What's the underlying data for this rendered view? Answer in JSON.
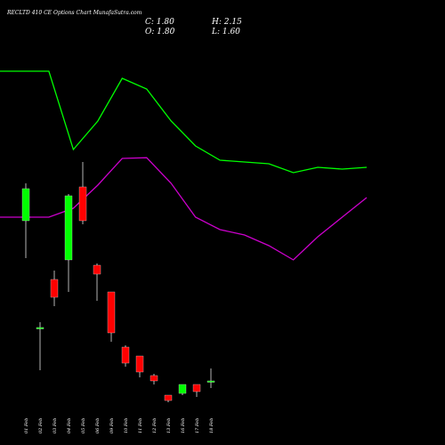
{
  "header": {
    "title": "RECLTD 410  CE Options  Chart MunafaSutra.com",
    "close": "C: 1.80",
    "high": "H: 2.15",
    "open": "O: 1.80",
    "low": "L: 1.60"
  },
  "colors": {
    "background": "#000000",
    "up": "#00ff00",
    "down": "#ff0000",
    "upper_band": "#00ff00",
    "lower_band": "#cc00cc",
    "wick": "#ffffff"
  },
  "chart_data": {
    "type": "candlestick",
    "categories": [
      "01 Feb",
      "02 Feb",
      "03 Feb",
      "04 Feb",
      "05 Feb",
      "06 Feb",
      "09 Feb",
      "10 Feb",
      "11 Feb",
      "12 Feb",
      "13 Feb",
      "16 Feb",
      "17 Feb",
      "18 Feb"
    ],
    "ohlc": [
      {
        "open": 6.3,
        "high": 7.35,
        "low": 5.25,
        "close": 7.2
      },
      {
        "open": 3.3,
        "high": 3.45,
        "low": 2.1,
        "close": 3.3
      },
      {
        "open": 4.65,
        "high": 4.9,
        "low": 3.9,
        "close": 4.15
      },
      {
        "open": 5.2,
        "high": 7.05,
        "low": 4.3,
        "close": 7.0
      },
      {
        "open": 7.25,
        "high": 7.95,
        "low": 6.2,
        "close": 6.3
      },
      {
        "open": 5.05,
        "high": 5.1,
        "low": 4.05,
        "close": 4.8
      },
      {
        "open": 4.3,
        "high": 4.3,
        "low": 2.9,
        "close": 3.15
      },
      {
        "open": 2.75,
        "high": 2.8,
        "low": 2.2,
        "close": 2.3
      },
      {
        "open": 2.5,
        "high": 2.5,
        "low": 1.9,
        "close": 2.05
      },
      {
        "open": 1.95,
        "high": 2.0,
        "low": 1.7,
        "close": 1.8
      },
      {
        "open": 1.4,
        "high": 1.4,
        "low": 1.2,
        "close": 1.25
      },
      {
        "open": 1.45,
        "high": 1.7,
        "low": 1.4,
        "close": 1.7
      },
      {
        "open": 1.7,
        "high": 1.7,
        "low": 1.35,
        "close": 1.5
      },
      {
        "open": 1.8,
        "high": 2.15,
        "low": 1.6,
        "close": 1.8
      }
    ],
    "upper_band": [
      {
        "x": "31 Jan",
        "y": 10.5
      },
      {
        "x": "01 Feb",
        "y": 10.5
      },
      {
        "x": "02 Feb",
        "y": 10.5
      },
      {
        "x": "03 Feb",
        "y": 8.3
      },
      {
        "x": "04 Feb",
        "y": 9.1
      },
      {
        "x": "05 Feb",
        "y": 10.3
      },
      {
        "x": "06 Feb",
        "y": 10.0
      },
      {
        "x": "09 Feb",
        "y": 9.1
      },
      {
        "x": "10 Feb",
        "y": 8.4
      },
      {
        "x": "11 Feb",
        "y": 8.0
      },
      {
        "x": "12 Feb",
        "y": 7.95
      },
      {
        "x": "13 Feb",
        "y": 7.9
      },
      {
        "x": "16 Feb",
        "y": 7.65
      },
      {
        "x": "17 Feb",
        "y": 7.8
      },
      {
        "x": "18 Feb",
        "y": 7.75
      },
      {
        "x": "19 Feb",
        "y": 7.8
      }
    ],
    "lower_band": [
      {
        "x": "31 Jan",
        "y": 6.4
      },
      {
        "x": "01 Feb",
        "y": 6.4
      },
      {
        "x": "02 Feb",
        "y": 6.4
      },
      {
        "x": "03 Feb",
        "y": 6.65
      },
      {
        "x": "04 Feb",
        "y": 7.3
      },
      {
        "x": "05 Feb",
        "y": 8.05
      },
      {
        "x": "06 Feb",
        "y": 8.07
      },
      {
        "x": "09 Feb",
        "y": 7.35
      },
      {
        "x": "10 Feb",
        "y": 6.4
      },
      {
        "x": "11 Feb",
        "y": 6.05
      },
      {
        "x": "12 Feb",
        "y": 5.9
      },
      {
        "x": "13 Feb",
        "y": 5.6
      },
      {
        "x": "16 Feb",
        "y": 5.2
      },
      {
        "x": "17 Feb",
        "y": 5.85
      },
      {
        "x": "18 Feb",
        "y": 6.4
      },
      {
        "x": "19 Feb",
        "y": 6.95
      }
    ],
    "title": "",
    "xlabel": "",
    "ylabel": "",
    "ylim": [
      0,
      12.5
    ],
    "grid": false,
    "legend": "none"
  }
}
